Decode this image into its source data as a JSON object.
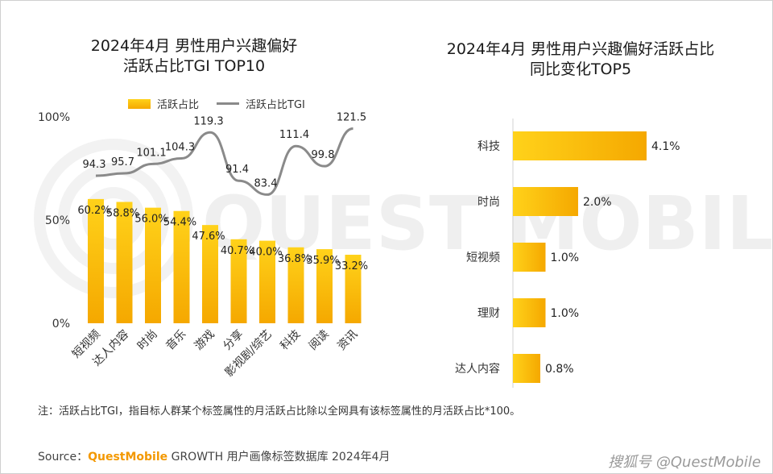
{
  "watermark": "QUEST MOBILE",
  "chart_data": [
    {
      "type": "bar",
      "title": "2024年4月 男性用户兴趣偏好\n活跃占比TGI TOP10",
      "categories": [
        "短视频",
        "达人内容",
        "时尚",
        "音乐",
        "游戏",
        "分享",
        "影视剧/综艺",
        "科技",
        "阅读",
        "资讯"
      ],
      "series": [
        {
          "name": "活跃占比",
          "type": "bar",
          "values": [
            60.2,
            58.8,
            56.0,
            54.4,
            47.6,
            40.7,
            40.0,
            36.8,
            35.9,
            33.2
          ]
        },
        {
          "name": "活跃占比TGI",
          "type": "line",
          "values": [
            94.3,
            95.7,
            101.1,
            104.3,
            119.3,
            91.4,
            83.4,
            111.4,
            99.8,
            121.5
          ]
        }
      ],
      "bar_labels": [
        "60.2%",
        "58.8%",
        "56.0%",
        "54.4%",
        "47.6%",
        "40.7%",
        "40.0%",
        "36.8%",
        "35.9%",
        "33.2%"
      ],
      "line_labels": [
        "94.3",
        "95.7",
        "101.1",
        "104.3",
        "119.3",
        "91.4",
        "83.4",
        "111.4",
        "99.8",
        "121.5"
      ],
      "yticks": [
        "100%",
        "50%",
        "0%"
      ],
      "ylim": [
        0,
        100
      ],
      "colors": {
        "bar_top": "#ffd21a",
        "bar_bottom": "#f5a800",
        "line": "#8a8a8a"
      },
      "legend_position": "top"
    },
    {
      "type": "bar",
      "orientation": "horizontal",
      "title": "2024年4月 男性用户兴趣偏好活跃占比\n同比变化TOP5",
      "categories": [
        "科技",
        "时尚",
        "短视频",
        "理财",
        "达人内容"
      ],
      "values": [
        4.1,
        2.0,
        1.0,
        1.0,
        0.8
      ],
      "labels": [
        "4.1%",
        "2.0%",
        "1.0%",
        "1.0%",
        "0.8%"
      ],
      "colors": {
        "bar_left": "#ffd21a",
        "bar_right": "#f5a800"
      }
    }
  ],
  "note": "注：活跃占比TGI，指目标人群某个标签属性的月活跃占比除以全网具有该标签属性的月活跃占比*100。",
  "source": {
    "prefix": "Source：",
    "brand": "QuestMobile",
    "suffix": " GROWTH 用户画像标签数据库 2024年4月"
  },
  "credit": "搜狐号 @QuestMobile"
}
